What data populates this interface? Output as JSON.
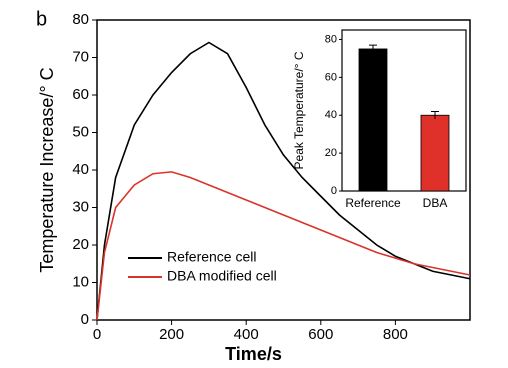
{
  "chart_data": [
    {
      "type": "line",
      "panel_label": "b",
      "xlabel": "Time/s",
      "ylabel": "Temperature Increase/° C",
      "x": [
        0,
        20,
        50,
        100,
        150,
        200,
        250,
        300,
        350,
        400,
        450,
        500,
        550,
        600,
        650,
        700,
        750,
        800,
        850,
        900,
        950,
        1000
      ],
      "series": [
        {
          "name": "Reference cell",
          "color": "#000000",
          "values": [
            0,
            20,
            38,
            52,
            60,
            66,
            71,
            74,
            71,
            62,
            52,
            44,
            38,
            33,
            28,
            24,
            20,
            17,
            15,
            13,
            12,
            11
          ]
        },
        {
          "name": "DBA modified cell",
          "color": "#d9342b",
          "values": [
            0,
            18,
            30,
            36,
            39,
            39.5,
            38,
            36,
            34,
            32,
            30,
            28,
            26,
            24,
            22,
            20,
            18,
            16.5,
            15,
            14,
            13,
            12
          ]
        }
      ],
      "xlim": [
        0,
        1000
      ],
      "xticks": [
        0,
        200,
        400,
        600,
        800
      ],
      "ylim": [
        0,
        80
      ],
      "yticks": [
        0,
        10,
        20,
        30,
        40,
        50,
        60,
        70,
        80
      ]
    },
    {
      "type": "bar",
      "ylabel": "Peak Temperature/° C",
      "categories": [
        "Reference",
        "DBA"
      ],
      "values": [
        75,
        40
      ],
      "errors": [
        2,
        2
      ],
      "colors": [
        "#000000",
        "#e0302a"
      ],
      "ylim": [
        0,
        85
      ],
      "yticks": [
        0,
        20,
        40,
        60,
        80
      ]
    }
  ]
}
